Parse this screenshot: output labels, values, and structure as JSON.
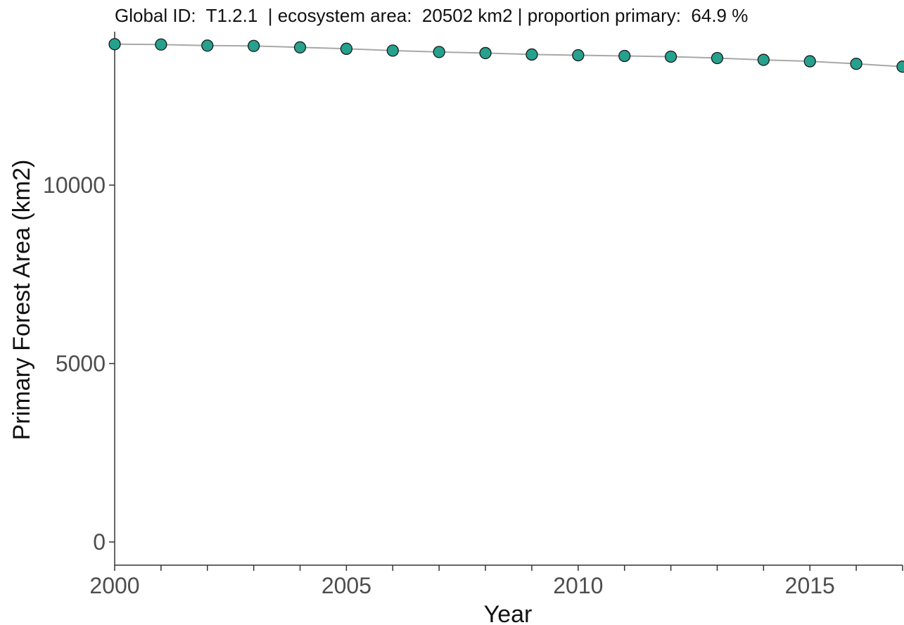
{
  "chart_data": {
    "type": "line",
    "title": "Global ID:  T1.2.1  | ecosystem area:  20502 km2 | proportion primary:  64.9 %",
    "xlabel": "Year",
    "ylabel": "Primary Forest Area (km2)",
    "xlim": [
      2000,
      2017
    ],
    "ylim": [
      -650,
      14300
    ],
    "x_ticks": [
      2000,
      2005,
      2010,
      2015
    ],
    "x_minor_ticks": [
      2000,
      2001,
      2002,
      2003,
      2004,
      2005,
      2006,
      2007,
      2008,
      2009,
      2010,
      2011,
      2012,
      2013,
      2014,
      2015,
      2016,
      2017
    ],
    "y_ticks": [
      0,
      5000,
      10000
    ],
    "grid": false,
    "series": [
      {
        "x": [
          2000,
          2001,
          2002,
          2003,
          2004,
          2005,
          2006,
          2007,
          2008,
          2009,
          2010,
          2011,
          2012,
          2013,
          2014,
          2015,
          2016,
          2017
        ],
        "values": [
          13950,
          13940,
          13910,
          13900,
          13860,
          13820,
          13770,
          13730,
          13700,
          13660,
          13640,
          13620,
          13600,
          13560,
          13510,
          13470,
          13400,
          13320
        ],
        "color": "#25a18e",
        "line_color": "#a8a8a8"
      }
    ]
  }
}
